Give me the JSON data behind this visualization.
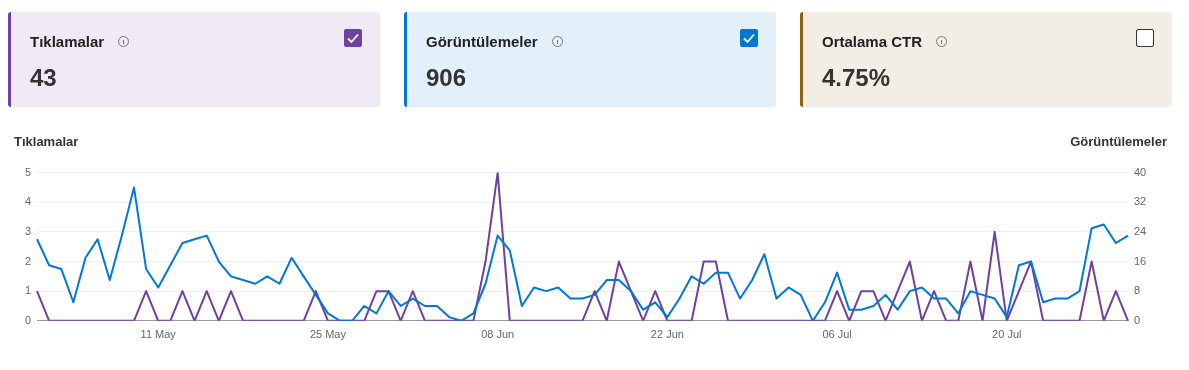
{
  "chart_data": [
    {
      "type": "other",
      "title": "Tıklamalar",
      "annotations": [
        "43"
      ],
      "color": "#7040a0"
    },
    {
      "type": "other",
      "title": "Görüntülemeler",
      "annotations": [
        "906"
      ],
      "color": "#0078d4"
    },
    {
      "type": "other",
      "title": "Ortalama CTR",
      "annotations": [
        "4.75%"
      ],
      "color": "#8a6410"
    },
    {
      "type": "line",
      "ylabel": "Tıklamalar",
      "y2label": "Görüntülemeler",
      "categories": [
        null,
        null,
        null,
        null,
        null,
        null,
        null,
        null,
        null,
        null,
        "11 May",
        null,
        null,
        null,
        null,
        null,
        null,
        null,
        null,
        null,
        null,
        null,
        null,
        null,
        "25 May",
        null,
        null,
        null,
        null,
        null,
        null,
        null,
        null,
        null,
        null,
        null,
        null,
        null,
        "08 Jun",
        null,
        null,
        null,
        null,
        null,
        null,
        null,
        null,
        null,
        null,
        null,
        null,
        null,
        "22 Jun",
        null,
        null,
        null,
        null,
        null,
        null,
        null,
        null,
        null,
        null,
        null,
        null,
        null,
        "06 Jul",
        null,
        null,
        null,
        null,
        null,
        null,
        null,
        null,
        null,
        null,
        null,
        null,
        null,
        "20 Jul",
        null,
        null,
        null,
        null,
        null,
        null,
        null,
        null,
        null,
        null
      ],
      "series": [
        {
          "color": "#0078d4",
          "axis": "y2",
          "values": [
            22,
            15,
            14,
            5,
            17,
            22,
            11,
            23,
            36,
            14,
            9,
            15,
            21,
            22,
            23,
            16,
            12,
            11,
            10,
            12,
            10,
            17,
            12,
            7,
            2,
            0,
            0,
            4,
            2,
            8,
            4,
            6,
            4,
            4,
            1,
            0,
            2,
            10,
            23,
            19,
            4,
            9,
            8,
            9,
            6,
            6,
            7,
            11,
            11,
            8,
            3,
            5,
            1,
            6,
            12,
            10,
            13,
            13,
            6,
            11,
            18,
            6,
            9,
            7,
            0,
            5,
            13,
            3,
            3,
            4,
            7,
            3,
            8,
            9,
            6,
            6,
            2,
            8,
            7,
            6,
            1,
            15,
            16,
            5,
            6,
            6,
            8,
            25,
            26,
            21,
            23
          ]
        },
        {
          "color": "#7040a0",
          "values": [
            1,
            0,
            0,
            0,
            0,
            0,
            0,
            0,
            0,
            1,
            0,
            0,
            1,
            0,
            1,
            0,
            1,
            0,
            0,
            0,
            0,
            0,
            0,
            1,
            0,
            0,
            0,
            0,
            1,
            1,
            0,
            1,
            0,
            0,
            0,
            0,
            0,
            2,
            5,
            0,
            0,
            0,
            0,
            0,
            0,
            0,
            1,
            0,
            2,
            1,
            0,
            1,
            0,
            0,
            0,
            2,
            2,
            0,
            0,
            0,
            0,
            0,
            0,
            0,
            0,
            0,
            1,
            0,
            1,
            1,
            0,
            1,
            2,
            0,
            1,
            0,
            0,
            2,
            0,
            3,
            0,
            1,
            2,
            0,
            0,
            0,
            0,
            2,
            0,
            1,
            0
          ]
        }
      ],
      "ylim": [
        0,
        5
      ],
      "yticks": [
        0,
        1,
        2,
        3,
        4,
        5
      ],
      "y2lim": [
        0,
        40
      ],
      "y2ticks": [
        0,
        8,
        16,
        24,
        32,
        40
      ],
      "grid": "y",
      "legend": false,
      "marker": "none",
      "line_style": "solid"
    }
  ]
}
